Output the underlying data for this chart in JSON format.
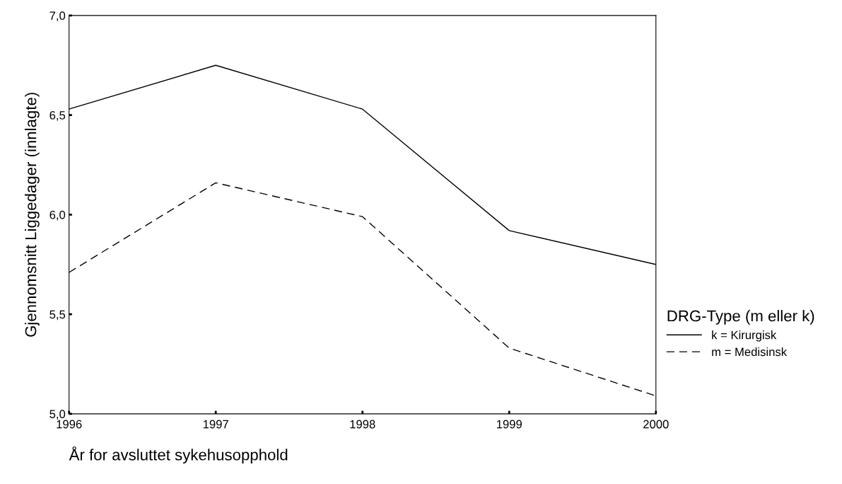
{
  "chart_data": {
    "type": "line",
    "xlabel": "År for avsluttet sykehusopphold",
    "ylabel": "Gjennomsnitt Liggedager (innlagte)",
    "legend_title": "DRG-Type (m eller k)",
    "x": [
      1996,
      1997,
      1998,
      1999,
      2000
    ],
    "series": [
      {
        "name": "k = Kirurgisk",
        "color": "#000000",
        "line_style": "solid",
        "values": [
          6.53,
          6.75,
          6.53,
          5.92,
          5.75
        ]
      },
      {
        "name": "m = Medisinsk",
        "color": "#000000",
        "line_style": "dashed",
        "values": [
          5.71,
          6.16,
          5.99,
          5.33,
          5.09
        ]
      }
    ],
    "xlim": [
      1996,
      2000
    ],
    "xticks": [
      1996,
      1997,
      1998,
      1999,
      2000
    ],
    "ylim": [
      5.0,
      7.0
    ],
    "yticks": [
      {
        "value": 5.0,
        "label": "5,0"
      },
      {
        "value": 5.5,
        "label": "5,5"
      },
      {
        "value": 6.0,
        "label": "6,0"
      },
      {
        "value": 6.5,
        "label": "6,5"
      },
      {
        "value": 7.0,
        "label": "7,0"
      }
    ],
    "grid": false,
    "legend": "right",
    "marker": "none"
  }
}
